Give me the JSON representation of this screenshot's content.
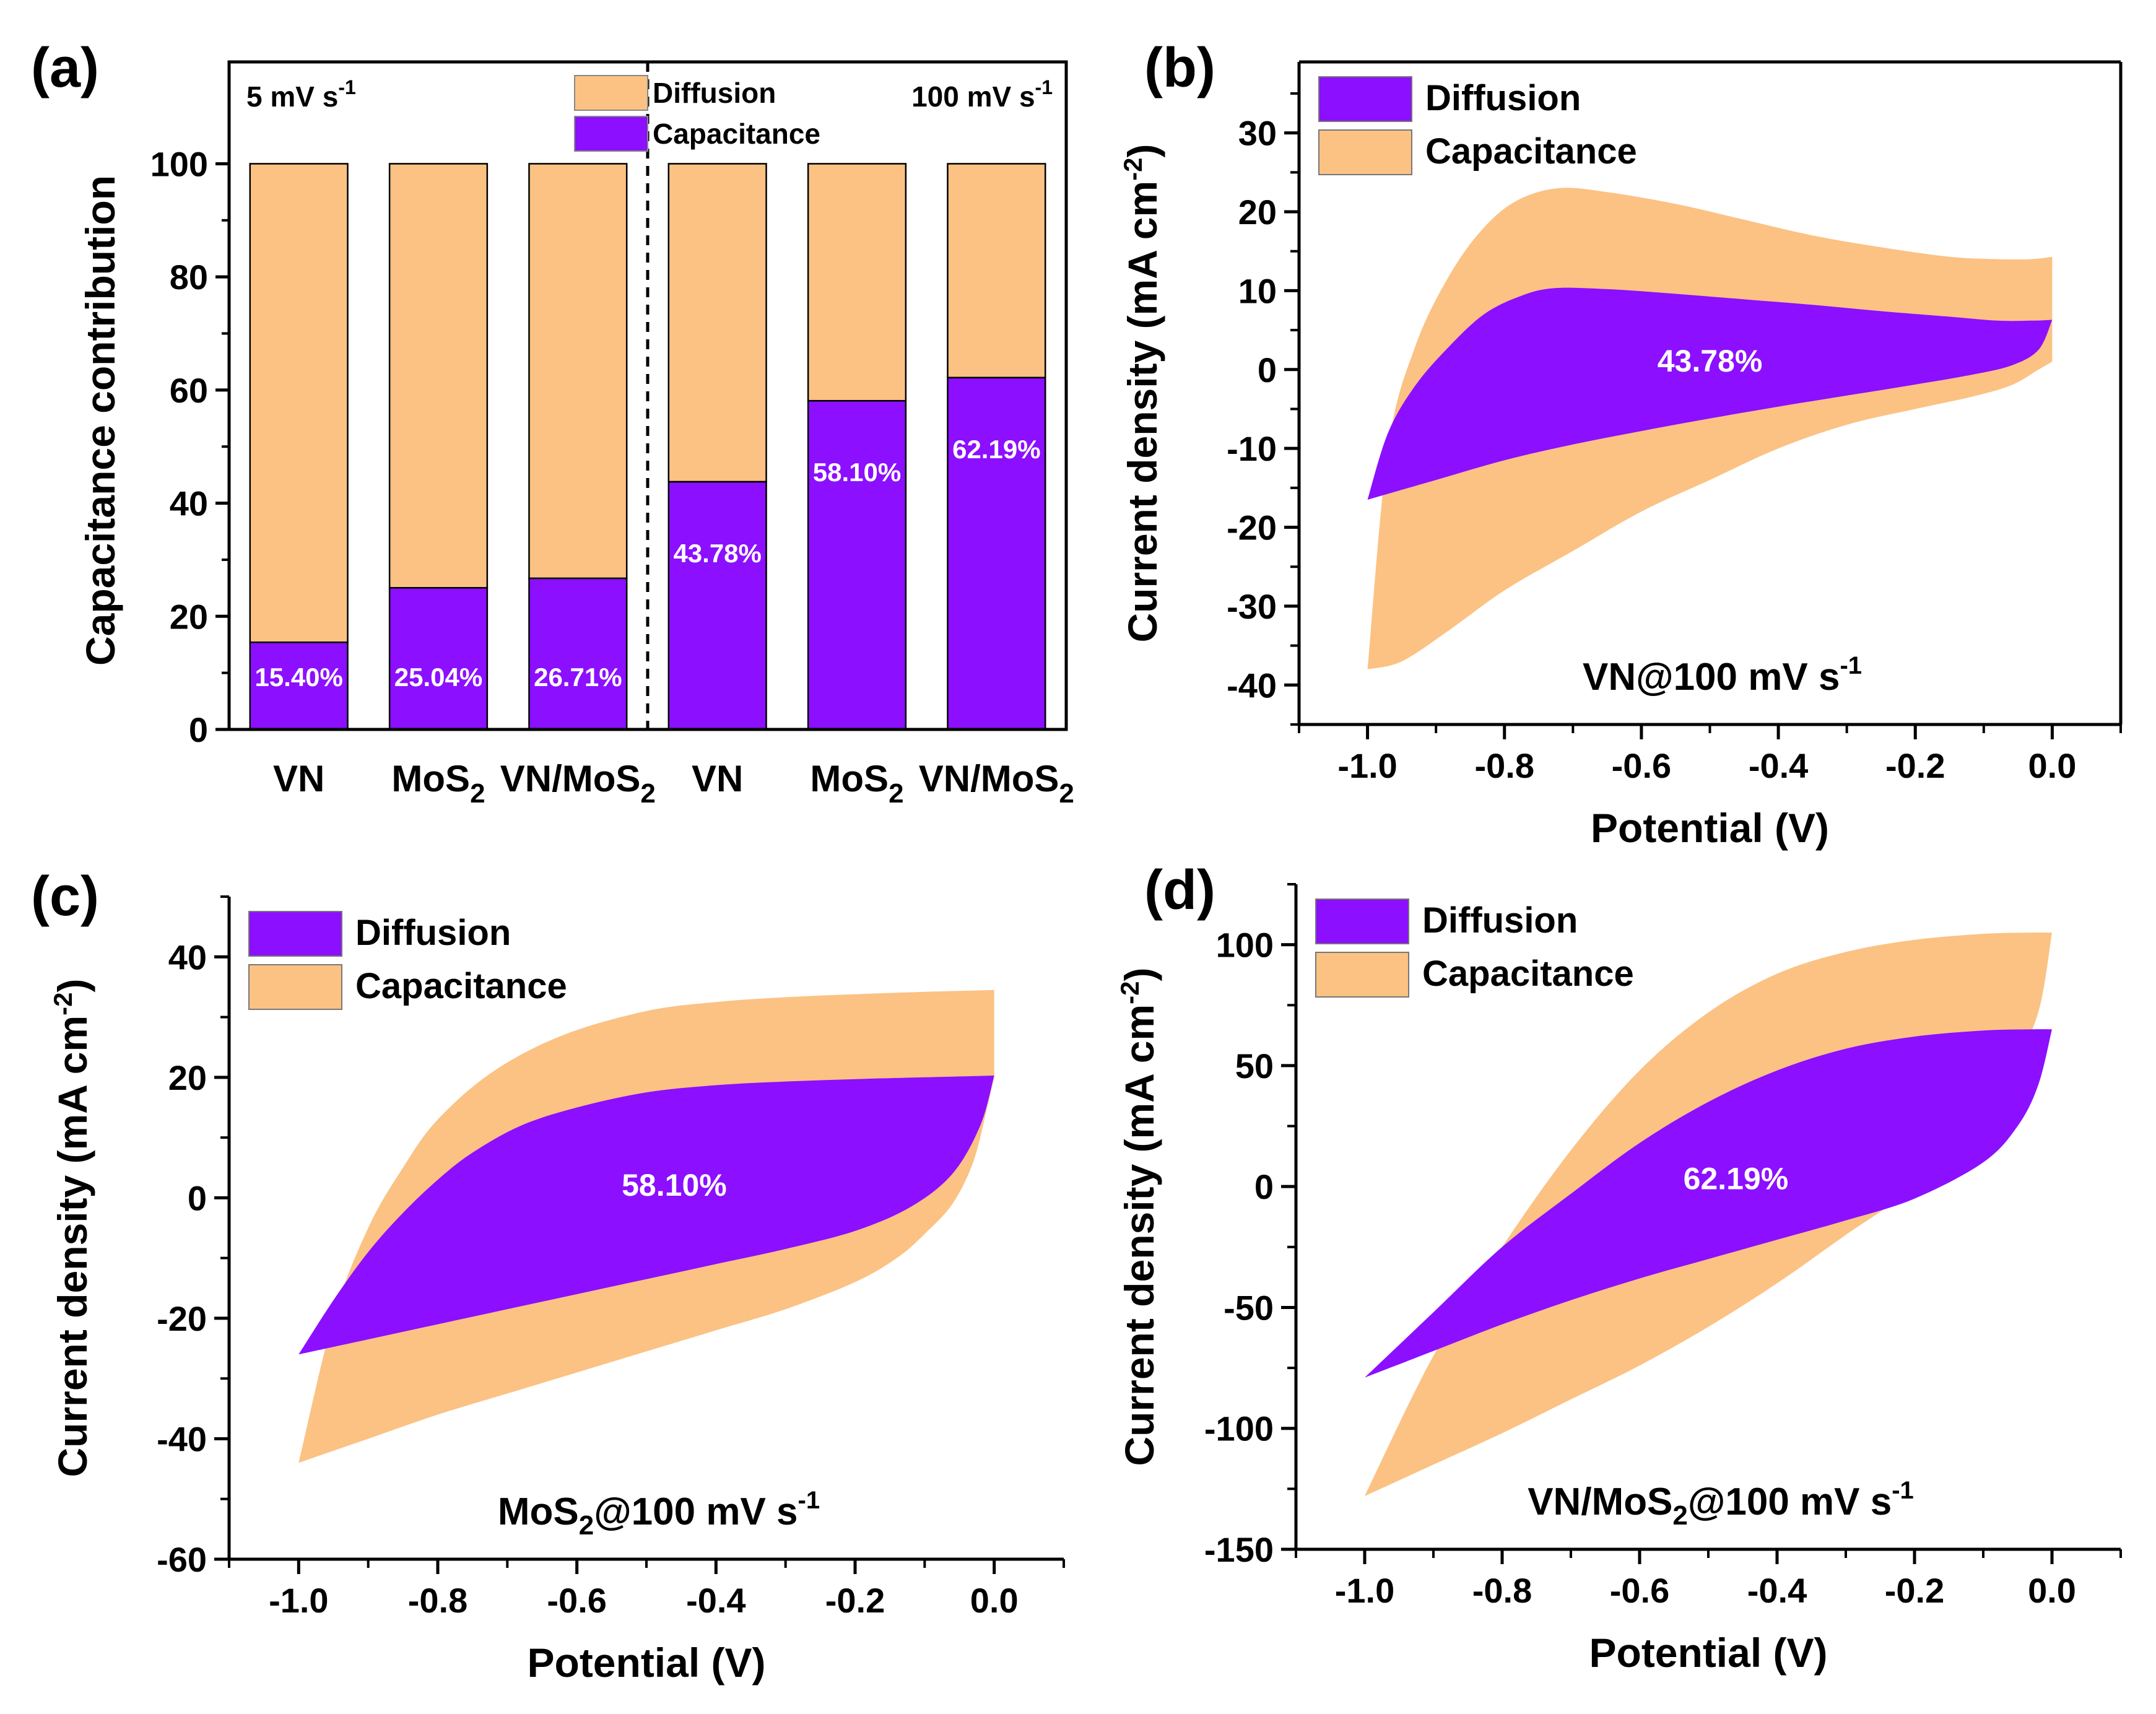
{
  "colors": {
    "diffusion_fill": "#FBC283",
    "capacitance_fill": "#8C0FFF",
    "axis": "#000000"
  },
  "chart_data": [
    {
      "panel_label": "(a)",
      "type": "bar",
      "stacked": true,
      "ylabel": "Capacitance contribution",
      "ylim": [
        0,
        118
      ],
      "yticks": [
        0,
        20,
        40,
        60,
        80,
        100
      ],
      "categories": [
        "VN",
        "MoS2",
        "VN/MoS2",
        "VN",
        "MoS2",
        "VN/MoS2"
      ],
      "tick_labels": [
        {
          "main": "VN",
          "sub": ""
        },
        {
          "main": "MoS",
          "sub": "2"
        },
        {
          "main": "VN/MoS",
          "sub": "2"
        },
        {
          "main": "VN",
          "sub": ""
        },
        {
          "main": "MoS",
          "sub": "2"
        },
        {
          "main": "VN/MoS",
          "sub": "2"
        }
      ],
      "series": [
        {
          "name": "Capacitance",
          "values": [
            15.4,
            25.04,
            26.71,
            43.78,
            58.1,
            62.19
          ]
        },
        {
          "name": "Diffusion",
          "values": [
            84.6,
            74.96,
            73.29,
            56.22,
            41.9,
            37.81
          ]
        }
      ],
      "data_labels": [
        "15.40%",
        "25.04%",
        "26.71%",
        "43.78%",
        "58.10%",
        "62.19%"
      ],
      "legend": [
        {
          "name": "Diffusion",
          "color": "#FBC283"
        },
        {
          "name": "Capacitance",
          "color": "#8C0FFF"
        }
      ],
      "scan_rate_left": {
        "text": "5 mV s",
        "sup": "-1"
      },
      "scan_rate_right": {
        "text": "100 mV s",
        "sup": "-1"
      },
      "divider_after_index": 2
    },
    {
      "panel_label": "(b)",
      "type": "area",
      "xlabel": "Potential (V)",
      "ylabel": {
        "text": "Current density (mA cm",
        "sup": "-2",
        "close": ")"
      },
      "xlim": [
        -1.1,
        0.1
      ],
      "ylim": [
        -45,
        39
      ],
      "xticks": [
        -1.0,
        -0.8,
        -0.6,
        -0.4,
        -0.2,
        0.0
      ],
      "xtick_labels": [
        "-1.0",
        "-0.8",
        "-0.6",
        "-0.4",
        "-0.2",
        "0.0"
      ],
      "yticks": [
        -40,
        -30,
        -20,
        -10,
        0,
        10,
        20,
        30
      ],
      "legend": [
        {
          "name": "Diffusion",
          "color": "#8C0FFF"
        },
        {
          "name": "Capacitance",
          "color": "#FBC283"
        }
      ],
      "condition": {
        "pre": "VN@100 mV s",
        "sub": "",
        "post": "",
        "sup": "-1"
      },
      "area_label": {
        "text": "43.78%",
        "x": -0.5,
        "y": 1
      },
      "series": [
        {
          "name": "Capacitance",
          "upper": {
            "x": [
              -1.0,
              -0.97,
              -0.93,
              -0.88,
              -0.83,
              -0.78,
              -0.72,
              -0.65,
              -0.55,
              -0.45,
              -0.35,
              -0.25,
              -0.15,
              -0.08,
              -0.03,
              0.0
            ],
            "y": [
              -38,
              -10,
              3,
              12,
              18,
              21.5,
              23,
              22.5,
              21,
              19,
              17,
              15.5,
              14.3,
              14,
              14,
              14.3
            ]
          },
          "lower": {
            "x": [
              -1.0,
              -0.95,
              -0.88,
              -0.8,
              -0.7,
              -0.6,
              -0.5,
              -0.4,
              -0.3,
              -0.2,
              -0.12,
              -0.06,
              -0.02,
              0.0
            ],
            "y": [
              -38,
              -37,
              -33,
              -28,
              -23,
              -18,
              -14,
              -10,
              -7,
              -5,
              -3.5,
              -2,
              0,
              1
            ]
          }
        },
        {
          "name": "Diffusion",
          "upper": {
            "x": [
              -1.0,
              -0.97,
              -0.93,
              -0.88,
              -0.83,
              -0.78,
              -0.73,
              -0.65,
              -0.55,
              -0.45,
              -0.35,
              -0.25,
              -0.15,
              -0.08,
              -0.03,
              0.0
            ],
            "y": [
              -16.5,
              -8,
              -2,
              3,
              7,
              9.2,
              10.3,
              10.2,
              9.6,
              8.9,
              8.2,
              7.4,
              6.7,
              6.2,
              6.2,
              6.3
            ]
          },
          "lower": {
            "x": [
              -1.0,
              -0.9,
              -0.8,
              -0.7,
              -0.6,
              -0.5,
              -0.4,
              -0.3,
              -0.2,
              -0.12,
              -0.06,
              -0.02,
              0.0
            ],
            "y": [
              -16.5,
              -14,
              -11.5,
              -9.5,
              -7.8,
              -6.2,
              -4.7,
              -3.3,
              -1.9,
              -0.7,
              0.5,
              2.5,
              6.3
            ]
          }
        }
      ]
    },
    {
      "panel_label": "(c)",
      "type": "area",
      "xlabel": "Potential (V)",
      "ylabel": {
        "text": "Current density (mA cm",
        "sup": "-2",
        "close": ")"
      },
      "xlim": [
        -1.1,
        0.1
      ],
      "ylim": [
        -60,
        50
      ],
      "xticks": [
        -1.0,
        -0.8,
        -0.6,
        -0.4,
        -0.2,
        0.0
      ],
      "xtick_labels": [
        "-1.0",
        "-0.8",
        "-0.6",
        "-0.4",
        "-0.2",
        "0.0"
      ],
      "yticks": [
        -60,
        -40,
        -20,
        0,
        20,
        40
      ],
      "legend": [
        {
          "name": "Diffusion",
          "color": "#8C0FFF"
        },
        {
          "name": "Capacitance",
          "color": "#FBC283"
        }
      ],
      "condition": {
        "pre": "MoS",
        "sub": "2",
        "post": "@100 mV s",
        "sup": "-1"
      },
      "area_label": {
        "text": "58.10%",
        "x": -0.46,
        "y": 2
      },
      "series": [
        {
          "name": "Capacitance",
          "upper": {
            "x": [
              -1.0,
              -0.95,
              -0.9,
              -0.85,
              -0.8,
              -0.72,
              -0.62,
              -0.5,
              -0.4,
              -0.3,
              -0.2,
              -0.1,
              -0.03,
              0.0
            ],
            "y": [
              -44,
              -20,
              -5,
              5,
              13,
              21,
              27,
              31,
              32.5,
              33.3,
              33.8,
              34.2,
              34.4,
              34.5
            ]
          },
          "lower": {
            "x": [
              -1.0,
              -0.9,
              -0.8,
              -0.7,
              -0.6,
              -0.5,
              -0.4,
              -0.3,
              -0.2,
              -0.14,
              -0.1,
              -0.06,
              -0.03,
              -0.01,
              0.0
            ],
            "y": [
              -44,
              -40,
              -36,
              -32.5,
              -29,
              -25.5,
              -22,
              -18.5,
              -14,
              -10,
              -6,
              -1,
              6,
              15,
              20
            ]
          }
        },
        {
          "name": "Diffusion",
          "upper": {
            "x": [
              -1.0,
              -0.95,
              -0.9,
              -0.85,
              -0.8,
              -0.75,
              -0.68,
              -0.6,
              -0.5,
              -0.4,
              -0.3,
              -0.2,
              -0.1,
              -0.03,
              0.0
            ],
            "y": [
              -26,
              -17,
              -9,
              -2.5,
              3,
              7.5,
              12,
              15,
              17.5,
              18.7,
              19.3,
              19.7,
              20,
              20.2,
              20.3
            ]
          },
          "lower": {
            "x": [
              -1.0,
              -0.9,
              -0.8,
              -0.7,
              -0.6,
              -0.5,
              -0.4,
              -0.3,
              -0.2,
              -0.12,
              -0.06,
              -0.02,
              0.0
            ],
            "y": [
              -26,
              -23.5,
              -21,
              -18.5,
              -16,
              -13.5,
              -11,
              -8.5,
              -5.5,
              -1.5,
              4,
              12,
              20.3
            ]
          }
        }
      ]
    },
    {
      "panel_label": "(d)",
      "type": "area",
      "xlabel": "Potential (V)",
      "ylabel": {
        "text": "Current density (mA cm",
        "sup": "-2",
        "close": ")"
      },
      "xlim": [
        -1.1,
        0.1
      ],
      "ylim": [
        -150,
        125
      ],
      "xticks": [
        -1.0,
        -0.8,
        -0.6,
        -0.4,
        -0.2,
        0.0
      ],
      "xtick_labels": [
        "-1.0",
        "-0.8",
        "-0.6",
        "-0.4",
        "-0.2",
        "0.0"
      ],
      "yticks": [
        -150,
        -100,
        -50,
        0,
        50,
        100
      ],
      "legend": [
        {
          "name": "Diffusion",
          "color": "#8C0FFF"
        },
        {
          "name": "Capacitance",
          "color": "#FBC283"
        }
      ],
      "condition": {
        "pre": "VN/MoS",
        "sub": "2",
        "post": "@100 mV s",
        "sup": "-1"
      },
      "area_label": {
        "text": "62.19%",
        "x": -0.46,
        "y": 3
      },
      "series": [
        {
          "name": "Capacitance",
          "upper": {
            "x": [
              -1.0,
              -0.9,
              -0.8,
              -0.7,
              -0.6,
              -0.5,
              -0.4,
              -0.3,
              -0.2,
              -0.1,
              -0.03,
              0.0
            ],
            "y": [
              -128,
              -70,
              -25,
              15,
              48,
              72,
              88,
              97,
              102,
              104.5,
              105,
              105
            ]
          },
          "lower": {
            "x": [
              -1.0,
              -0.9,
              -0.8,
              -0.7,
              -0.6,
              -0.5,
              -0.4,
              -0.3,
              -0.2,
              -0.12,
              -0.06,
              -0.02,
              0.0
            ],
            "y": [
              -128,
              -115,
              -102,
              -88,
              -74,
              -58,
              -40,
              -20,
              0,
              24,
              48,
              72,
              105
            ]
          }
        },
        {
          "name": "Diffusion",
          "upper": {
            "x": [
              -1.0,
              -0.9,
              -0.8,
              -0.7,
              -0.6,
              -0.5,
              -0.4,
              -0.3,
              -0.2,
              -0.1,
              -0.03,
              0.0
            ],
            "y": [
              -79,
              -52,
              -25,
              -3,
              18,
              35,
              48,
              57,
              62,
              64.5,
              65,
              65
            ]
          },
          "lower": {
            "x": [
              -1.0,
              -0.9,
              -0.8,
              -0.7,
              -0.6,
              -0.5,
              -0.4,
              -0.3,
              -0.2,
              -0.1,
              -0.05,
              -0.02,
              0.0
            ],
            "y": [
              -79,
              -68,
              -57,
              -47,
              -38,
              -30,
              -22,
              -14,
              -5,
              10,
              25,
              42,
              65
            ]
          }
        }
      ]
    }
  ]
}
